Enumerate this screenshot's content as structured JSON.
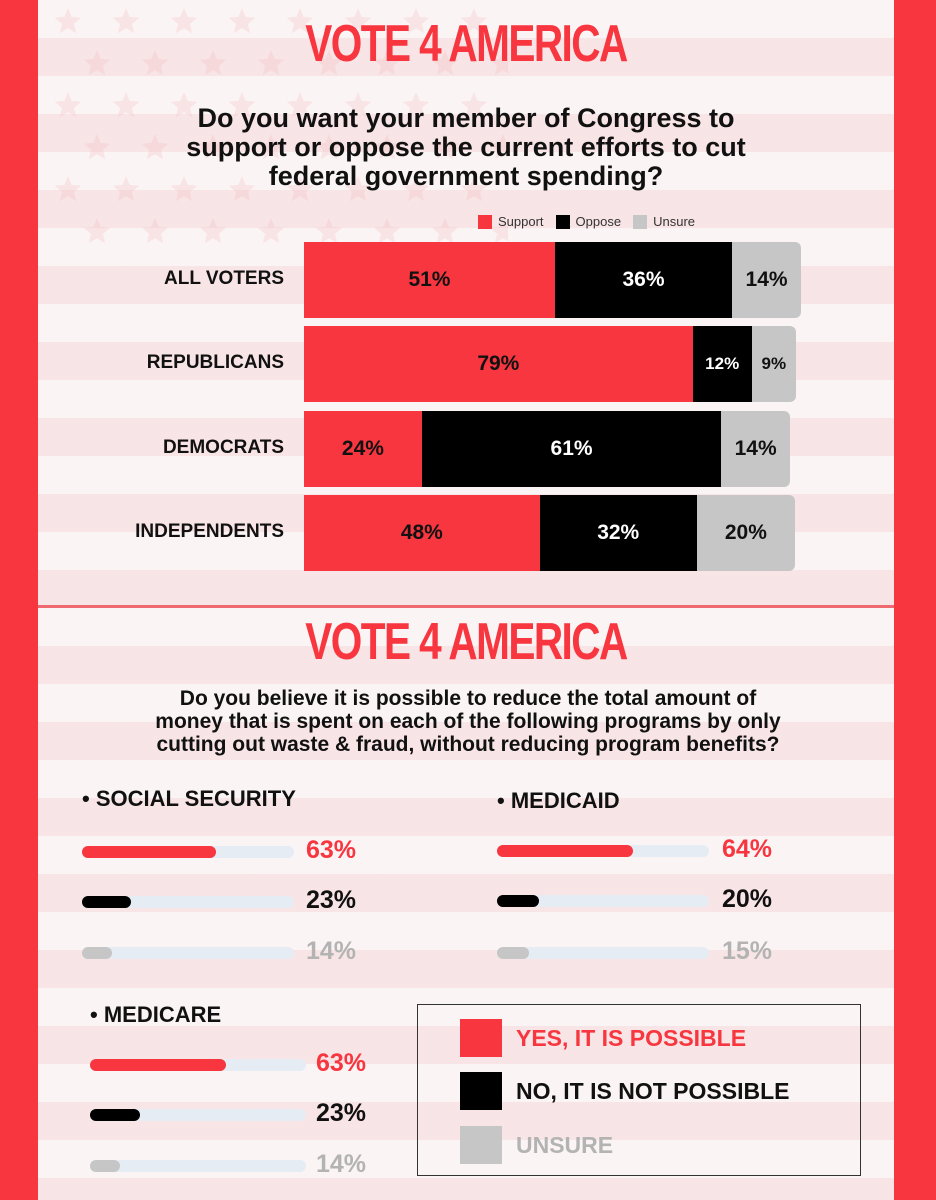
{
  "panel1": {
    "logo": "VOTE 4 AMERICA",
    "question": "Do you want your member of Congress to support or oppose the current efforts to cut federal government spending?",
    "question_lines": [
      "Do you want your member of Congress to",
      "support or oppose the current efforts to cut",
      "federal government spending?"
    ]
  },
  "panel2": {
    "logo": "VOTE 4 AMERICA",
    "question_lines": [
      "Do you believe it is possible to reduce the total amount of",
      "money that is spent on each of the following programs by only",
      "cutting out waste & fraud, without reducing program benefits?"
    ]
  },
  "colors": {
    "support": "#f7363f",
    "oppose": "#000000",
    "unsure": "#c6c6c6",
    "unsure_text": "#b3b3b3"
  },
  "chart_data": [
    {
      "type": "bar",
      "orientation": "horizontal-stacked",
      "title": "Do you want your member of Congress to support or oppose the current efforts to cut federal government spending?",
      "legend": [
        "Support",
        "Oppose",
        "Unsure"
      ],
      "legend_position": "top",
      "categories": [
        "ALL VOTERS",
        "REPUBLICANS",
        "DEMOCRATS",
        "INDEPENDENTS"
      ],
      "series": [
        {
          "name": "Support",
          "values": [
            51,
            79,
            24,
            48
          ]
        },
        {
          "name": "Oppose",
          "values": [
            36,
            12,
            61,
            32
          ]
        },
        {
          "name": "Unsure",
          "values": [
            14,
            9,
            14,
            20
          ]
        }
      ]
    },
    {
      "type": "bar",
      "orientation": "horizontal-progress",
      "title": "Do you believe it is possible to reduce the total amount of money that is spent on each of the following programs by only cutting out waste & fraud, without reducing program benefits?",
      "legend": [
        "YES, IT IS POSSIBLE",
        "NO, IT IS NOT POSSIBLE",
        "UNSURE"
      ],
      "legend_position": "bottom-right",
      "groups": [
        {
          "name": "SOCIAL SECURITY",
          "values": [
            63,
            23,
            14
          ]
        },
        {
          "name": "MEDICAID",
          "values": [
            64,
            20,
            15
          ]
        },
        {
          "name": "MEDICARE",
          "values": [
            63,
            23,
            14
          ]
        }
      ]
    }
  ]
}
